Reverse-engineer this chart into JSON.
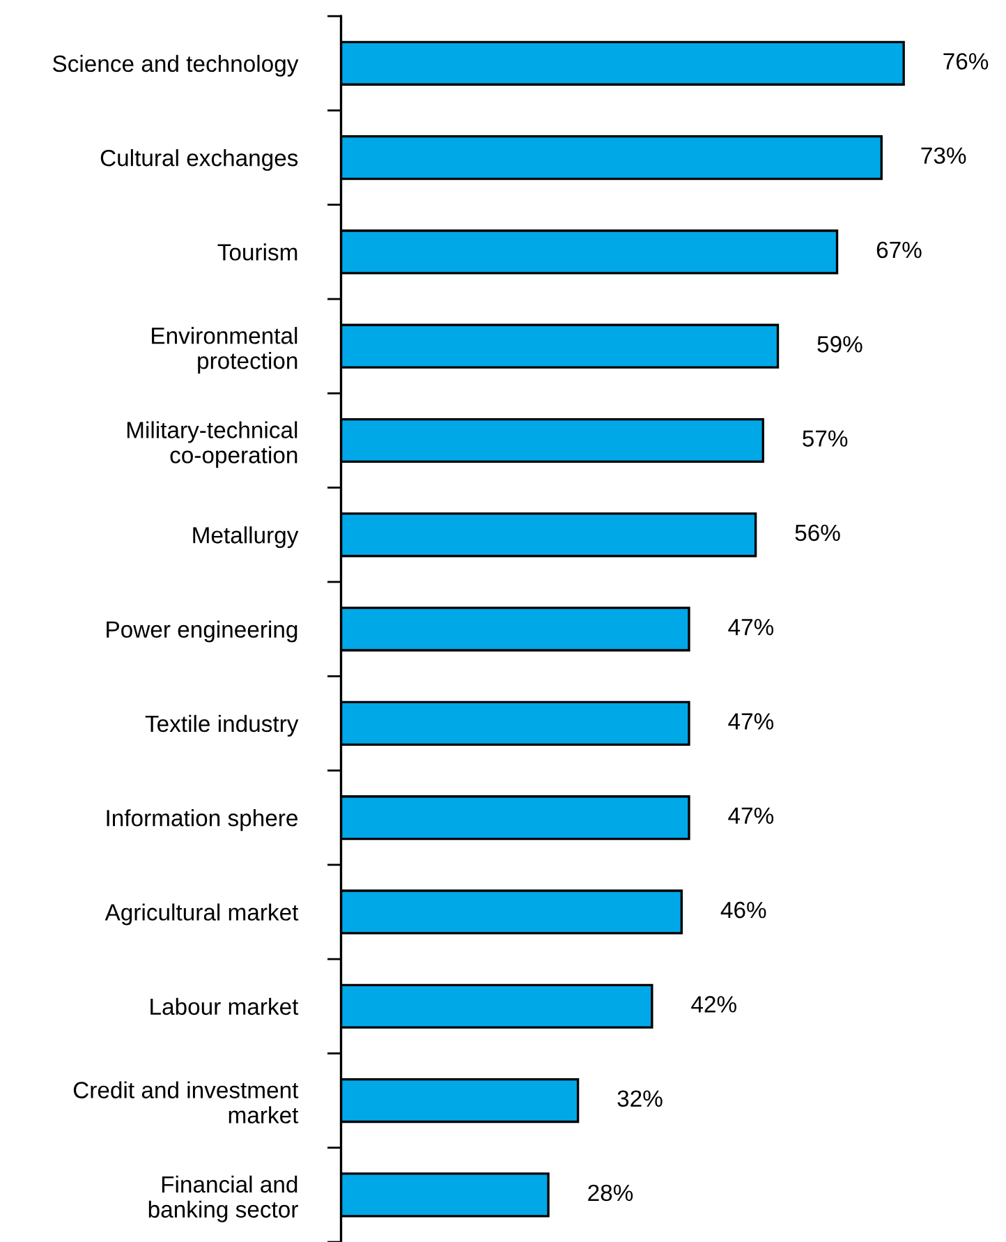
{
  "chart_data": {
    "type": "bar",
    "orientation": "horizontal",
    "categories": [
      "Science and technology",
      "Cultural exchanges",
      "Tourism",
      "Environmental\nprotection",
      "Military-technical\nco-operation",
      "Metallurgy",
      "Power engineering",
      "Textile industry",
      "Information sphere",
      "Agricultural market",
      "Labour market",
      "Credit and investment\nmarket",
      "Financial and\nbanking sector"
    ],
    "values": [
      76,
      73,
      67,
      59,
      57,
      56,
      47,
      47,
      47,
      46,
      42,
      32,
      28
    ],
    "value_labels": [
      "76%",
      "73%",
      "67%",
      "59%",
      "57%",
      "56%",
      "47%",
      "47%",
      "47%",
      "46%",
      "42%",
      "32%",
      "28%"
    ],
    "color": "#00a8e8"
  }
}
